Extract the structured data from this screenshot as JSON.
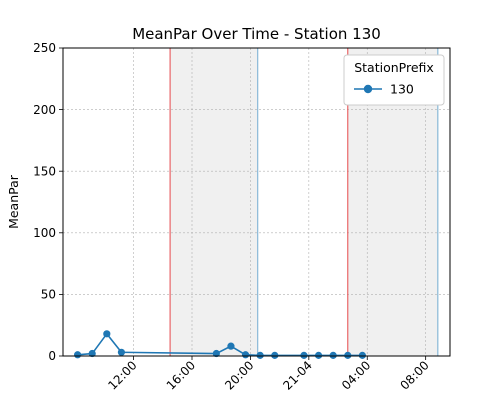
{
  "chart_data": {
    "type": "line",
    "title": "MeanPar Over Time - Station 130",
    "xlabel": "",
    "ylabel": "MeanPar",
    "ylim": [
      0,
      250
    ],
    "yticks": [
      0,
      50,
      100,
      150,
      200,
      250
    ],
    "xlim": [
      "2021-04-20 07:10",
      "2021-04-21 09:40"
    ],
    "xticks": [
      {
        "label": "12:00",
        "t": "2021-04-20 12:00"
      },
      {
        "label": "16:00",
        "t": "2021-04-20 16:00"
      },
      {
        "label": "20:00",
        "t": "2021-04-20 20:00"
      },
      {
        "label": "21-04",
        "t": "2021-04-21 00:00"
      },
      {
        "label": "04:00",
        "t": "2021-04-21 04:00"
      },
      {
        "label": "08:00",
        "t": "2021-04-21 08:00"
      }
    ],
    "grid": true,
    "legend": {
      "title": "StationPrefix",
      "position": "top-right"
    },
    "series": [
      {
        "name": "130",
        "color": "#1f77b4",
        "marker": "circle",
        "x": [
          "2021-04-20 08:10",
          "2021-04-20 09:10",
          "2021-04-20 10:10",
          "2021-04-20 11:10",
          "2021-04-20 17:40",
          "2021-04-20 18:40",
          "2021-04-20 19:40",
          "2021-04-20 20:40",
          "2021-04-20 21:40",
          "2021-04-20 23:40",
          "2021-04-21 00:40",
          "2021-04-21 01:40",
          "2021-04-21 02:40",
          "2021-04-21 03:40"
        ],
        "y": [
          1,
          2,
          18,
          3,
          2,
          8,
          1,
          0.5,
          0.5,
          0.5,
          0.5,
          0.5,
          0.5,
          0.5
        ]
      }
    ],
    "night_periods": [
      {
        "start": "2021-04-20 14:30",
        "end": "2021-04-20 20:30",
        "start_color": "#e8585a",
        "end_color": "#7fb3d5",
        "fill": "#f0f0f0"
      },
      {
        "start": "2021-04-21 02:40",
        "end": "2021-04-21 08:50",
        "start_color": "#e8585a",
        "end_color": "#7fb3d5",
        "fill": "#f0f0f0"
      }
    ]
  }
}
